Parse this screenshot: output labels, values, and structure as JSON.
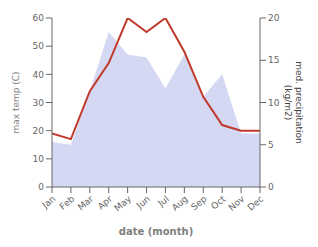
{
  "chart_data": {
    "type": "line",
    "x": [
      1,
      2,
      3,
      4,
      5,
      6,
      7,
      8,
      9,
      10,
      11,
      12
    ],
    "xlim": [
      1,
      12
    ],
    "xticks": [
      {
        "value": 1,
        "label": "Jan"
      },
      {
        "value": 2,
        "label": "Feb"
      },
      {
        "value": 3,
        "label": "Mar"
      },
      {
        "value": 4,
        "label": "Apr"
      },
      {
        "value": 5,
        "label": "May"
      },
      {
        "value": 6,
        "label": "Jun"
      },
      {
        "value": 7,
        "label": "Jul"
      },
      {
        "value": 8,
        "label": "Aug"
      },
      {
        "value": 9,
        "label": "Sep"
      },
      {
        "value": 10,
        "label": "Oct"
      },
      {
        "value": 11,
        "label": "Nov"
      },
      {
        "value": 12,
        "label": "Dec"
      }
    ],
    "xlabel": "date (month)",
    "ylabel": "max temp (C)",
    "ylim": [
      0,
      60
    ],
    "yticks": [
      0,
      10,
      20,
      30,
      40,
      50,
      60
    ],
    "y2label": "med. precipitation\n(kg/m2)",
    "y2lim": [
      0,
      20
    ],
    "y2ticks": [
      0,
      5,
      10,
      15,
      20
    ],
    "series": [
      {
        "type": "area",
        "color": "#b0b8e8",
        "values": [
          16,
          15,
          34,
          55,
          47,
          46,
          35,
          47,
          32,
          40,
          19,
          19
        ]
      },
      {
        "type": "line",
        "color": "#c0392b",
        "values": [
          19,
          17,
          34,
          44,
          60,
          55,
          60,
          48,
          32,
          22,
          20,
          20
        ]
      }
    ]
  }
}
